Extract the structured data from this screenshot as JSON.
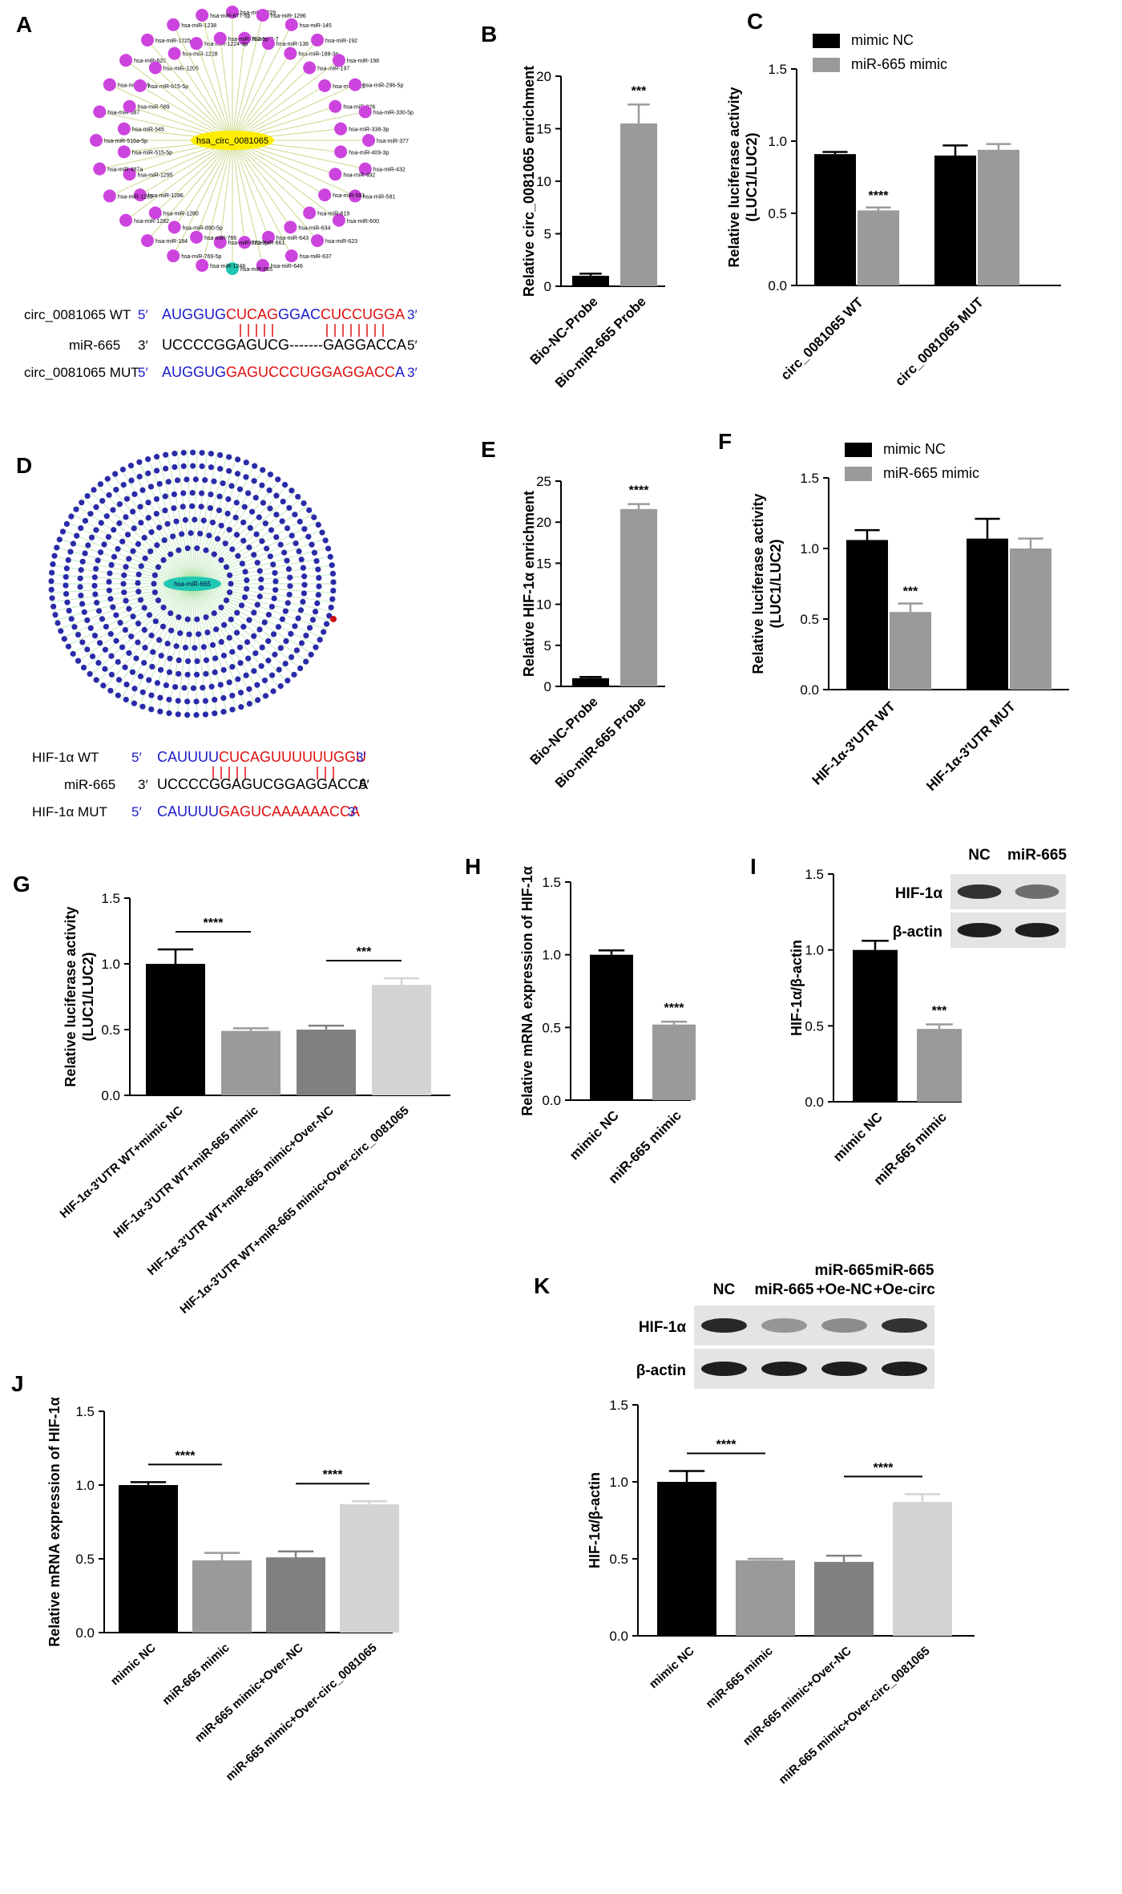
{
  "colors": {
    "black": "#000000",
    "gray": "#9a9a9a",
    "darkgray": "#808080",
    "lightgray": "#d4d4d4",
    "magenta": "#cc44dd",
    "teal": "#22c7b3",
    "yellow": "#ffee00",
    "navy": "#2a2aa8",
    "blue": "#1a1acc",
    "red": "#e01010",
    "network_edge": "#c8d88a",
    "network_edge2": "#a8e0a0"
  },
  "panels": {
    "A": "A",
    "B": "B",
    "C": "C",
    "D": "D",
    "E": "E",
    "F": "F",
    "G": "G",
    "H": "H",
    "I": "I",
    "J": "J",
    "K": "K"
  },
  "networkA": {
    "center": "hsa_circ_0081065",
    "nodes": [
      "hsa-miR-1229",
      "hsa-miR-7",
      "hsa-miR-1296",
      "hsa-miR-136",
      "hsa-miR-145",
      "hsa-miR-188-3p",
      "hsa-miR-192",
      "hsa-miR-197",
      "hsa-miR-198",
      "hsa-miR-215",
      "hsa-miR-296-5p",
      "hsa-miR-326",
      "hsa-miR-330-5p",
      "hsa-miR-338-3p",
      "hsa-miR-377",
      "hsa-miR-409-3p",
      "hsa-miR-432",
      "hsa-miR-492",
      "hsa-miR-581",
      "hsa-miR-591",
      "hsa-miR-600",
      "hsa-miR-619",
      "hsa-miR-623",
      "hsa-miR-634",
      "hsa-miR-637",
      "hsa-miR-643",
      "hsa-miR-646",
      "hsa-miR-661",
      "hsa-miR-665",
      "hsa-miR-671-5p",
      "hsa-miR-1248",
      "hsa-miR-766",
      "hsa-miR-769-5p",
      "hsa-miR-890-5p",
      "hsa-miR-184",
      "hsa-miR-1280",
      "hsa-miR-1282",
      "hsa-miR-1286",
      "hsa-miR-1289",
      "hsa-miR-1295",
      "hsa-miR-487a",
      "hsa-miR-515-5p",
      "hsa-miR-516a-5p",
      "hsa-miR-545",
      "hsa-miR-587",
      "hsa-miR-589",
      "hsa-miR-599",
      "hsa-miR-615-5p",
      "hsa-miR-625",
      "hsa-miR-1205",
      "hsa-miR-1225-3p",
      "hsa-miR-1228",
      "hsa-miR-1238",
      "hsa-miR-1224-3p",
      "hsa-miR-877-5p",
      "hsa-miR-767-5p"
    ]
  },
  "networkD": {
    "center": "hsa-miR-665"
  },
  "seqA": {
    "wt_label": "circ_0081065 WT",
    "wt_p5": "5′",
    "wt_blue": "AUGGUG",
    "wt_red1": "CUCAG",
    "wt_mid": "GGAC",
    "wt_red2": "CUCCUGGA",
    "wt_p3": "3′",
    "mir_label": "miR-665",
    "mir_p3": "3′",
    "mir_seq": "UCCCCGGAGUCG-------GAGGACCA",
    "mir_p5": "5′",
    "mut_label": "circ_0081065 MUT",
    "mut_p5": "5′",
    "mut_blue": "AUGGUG",
    "mut_red": "GAGUCCCUGGAGGACC",
    "mut_blue2": "A",
    "mut_p3": "3′"
  },
  "seqD": {
    "wt_label": "HIF-1α WT",
    "wt_p5": "5′",
    "wt_blue": "CAUUUU",
    "wt_red": "CUCAGUUUUUUGGU",
    "wt_p3": "3′",
    "mir_label": "miR-665",
    "mir_p3": "3′",
    "mir_seq": "UCCCCGGAGUCGGAGGACCA",
    "mir_p5": "5′",
    "mut_label": "HIF-1α MUT",
    "mut_p5": "5′",
    "mut_blue": "CAUUUU",
    "mut_red": "GAGUCAAAAAACCA",
    "mut_p3": "3′"
  },
  "chart_data": [
    {
      "panel": "B",
      "type": "bar",
      "ylabel": "Relative circ_0081065 enrichment",
      "ylim": [
        0,
        20
      ],
      "yticks": [
        0,
        5,
        10,
        15,
        20
      ],
      "categories": [
        "Bio-NC-Probe",
        "Bio-miR-665 Probe"
      ],
      "values": [
        1.0,
        15.5
      ],
      "errors": [
        0.2,
        1.8
      ],
      "colors": [
        "black",
        "gray"
      ],
      "sig": [
        {
          "bar": 1,
          "text": "***"
        }
      ]
    },
    {
      "panel": "C",
      "type": "bar",
      "ylabel": [
        "Relative luciferase activity",
        "(LUC1/LUC2)"
      ],
      "ylim": [
        0,
        1.5
      ],
      "yticks": [
        "0.0",
        "0.5",
        "1.0",
        "1.5"
      ],
      "groups": [
        "circ_0081065 WT",
        "circ_0081065 MUT"
      ],
      "series": [
        {
          "name": "mimic NC",
          "values": [
            0.91,
            0.9
          ],
          "errors": [
            0.015,
            0.07
          ]
        },
        {
          "name": "miR-665 mimic",
          "values": [
            0.52,
            0.94
          ],
          "errors": [
            0.02,
            0.04
          ]
        }
      ],
      "legend": "top-right",
      "sig": [
        {
          "group": 0,
          "series": 1,
          "text": "****"
        }
      ]
    },
    {
      "panel": "E",
      "type": "bar",
      "ylabel": "Relative HIF-1α enrichment",
      "ylim": [
        0,
        25
      ],
      "yticks": [
        0,
        5,
        10,
        15,
        20,
        25
      ],
      "categories": [
        "Bio-NC-Probe",
        "Bio-miR-665 Probe"
      ],
      "values": [
        1.0,
        21.6
      ],
      "errors": [
        0.15,
        0.6
      ],
      "colors": [
        "black",
        "gray"
      ],
      "sig": [
        {
          "bar": 1,
          "text": "****"
        }
      ]
    },
    {
      "panel": "F",
      "type": "bar",
      "ylabel": [
        "Relative luciferase activity",
        "(LUC1/LUC2)"
      ],
      "ylim": [
        0,
        1.5
      ],
      "yticks": [
        "0.0",
        "0.5",
        "1.0",
        "1.5"
      ],
      "groups": [
        "HIF-1α-3′UTR WT",
        "HIF-1α-3′UTR MUT"
      ],
      "series": [
        {
          "name": "mimic NC",
          "values": [
            1.06,
            1.07
          ],
          "errors": [
            0.07,
            0.14
          ]
        },
        {
          "name": "miR-665 mimic",
          "values": [
            0.55,
            1.0
          ],
          "errors": [
            0.06,
            0.07
          ]
        }
      ],
      "legend": "top-right",
      "sig": [
        {
          "group": 0,
          "series": 1,
          "text": "***"
        }
      ]
    },
    {
      "panel": "G",
      "type": "bar",
      "ylabel": [
        "Relative luciferase activity",
        "(LUC1/LUC2)"
      ],
      "ylim": [
        0,
        1.5
      ],
      "yticks": [
        "0.0",
        "0.5",
        "1.0",
        "1.5"
      ],
      "categories": [
        "HIF-1α-3′UTR WT+mimic NC",
        "HIF-1α-3′UTR WT+miR-665 mimic",
        "HIF-1α-3′UTR WT+miR-665 mimic+Over-NC",
        "HIF-1α-3′UTR WT+miR-665 mimic+Over-circ_0081065"
      ],
      "values": [
        1.0,
        0.49,
        0.5,
        0.84
      ],
      "errors": [
        0.11,
        0.02,
        0.03,
        0.05
      ],
      "colors": [
        "black",
        "gray",
        "darkgray",
        "lightgray"
      ],
      "brackets": [
        {
          "from": 0,
          "to": 1,
          "text": "****"
        },
        {
          "from": 2,
          "to": 3,
          "text": "***"
        }
      ]
    },
    {
      "panel": "H",
      "type": "bar",
      "ylabel": "Relative mRNA expression of HIF-1α",
      "ylim": [
        0,
        1.5
      ],
      "yticks": [
        "0.0",
        "0.5",
        "1.0",
        "1.5"
      ],
      "categories": [
        "mimic NC",
        "miR-665 mimic"
      ],
      "values": [
        1.0,
        0.52
      ],
      "errors": [
        0.03,
        0.02
      ],
      "colors": [
        "black",
        "gray"
      ],
      "sig": [
        {
          "bar": 1,
          "text": "****"
        }
      ]
    },
    {
      "panel": "I",
      "type": "bar",
      "ylabel": "HIF-1α/β-actin",
      "ylim": [
        0,
        1.5
      ],
      "yticks": [
        "0.0",
        "0.5",
        "1.0",
        "1.5"
      ],
      "categories": [
        "mimic NC",
        "miR-665 mimic"
      ],
      "values": [
        1.0,
        0.48
      ],
      "errors": [
        0.06,
        0.03
      ],
      "colors": [
        "black",
        "gray"
      ],
      "sig": [
        {
          "bar": 1,
          "text": "***"
        }
      ]
    },
    {
      "panel": "J",
      "type": "bar",
      "ylabel": "Relative mRNA expression of HIF-1α",
      "ylim": [
        0,
        1.5
      ],
      "yticks": [
        "0.0",
        "0.5",
        "1.0",
        "1.5"
      ],
      "categories": [
        "mimic NC",
        "miR-665 mimic",
        "miR-665 mimic+Over-NC",
        "miR-665 mimic+Over-circ_0081065"
      ],
      "values": [
        1.0,
        0.49,
        0.51,
        0.87
      ],
      "errors": [
        0.02,
        0.05,
        0.04,
        0.02
      ],
      "colors": [
        "black",
        "gray",
        "darkgray",
        "lightgray"
      ],
      "brackets": [
        {
          "from": 0,
          "to": 1,
          "text": "****"
        },
        {
          "from": 2,
          "to": 3,
          "text": "****"
        }
      ]
    },
    {
      "panel": "K",
      "type": "bar",
      "ylabel": "HIF-1α/β-actin",
      "ylim": [
        0,
        1.5
      ],
      "yticks": [
        "0.0",
        "0.5",
        "1.0",
        "1.5"
      ],
      "categories": [
        "mimic NC",
        "miR-665 mimic",
        "miR-665 mimic+Over-NC",
        "miR-665 mimic+Over-circ_0081065"
      ],
      "values": [
        1.0,
        0.49,
        0.48,
        0.87
      ],
      "errors": [
        0.07,
        0.01,
        0.04,
        0.05
      ],
      "colors": [
        "black",
        "gray",
        "darkgray",
        "lightgray"
      ],
      "brackets": [
        {
          "from": 0,
          "to": 1,
          "text": "****"
        },
        {
          "from": 2,
          "to": 3,
          "text": "****"
        }
      ]
    }
  ],
  "blotI": {
    "lanes": [
      "NC",
      "miR-665"
    ],
    "rows": [
      "HIF-1α",
      "β-actin"
    ],
    "intensity": [
      [
        0.85,
        0.55
      ],
      [
        0.95,
        0.95
      ]
    ]
  },
  "blotK": {
    "lanes": [
      "NC",
      "miR-665",
      "miR-665\n+Oe-NC",
      "miR-665\n+Oe-circ"
    ],
    "rows": [
      "HIF-1α",
      "β-actin"
    ],
    "intensity": [
      [
        0.9,
        0.35,
        0.4,
        0.85
      ],
      [
        0.95,
        0.95,
        0.95,
        0.95
      ]
    ]
  }
}
